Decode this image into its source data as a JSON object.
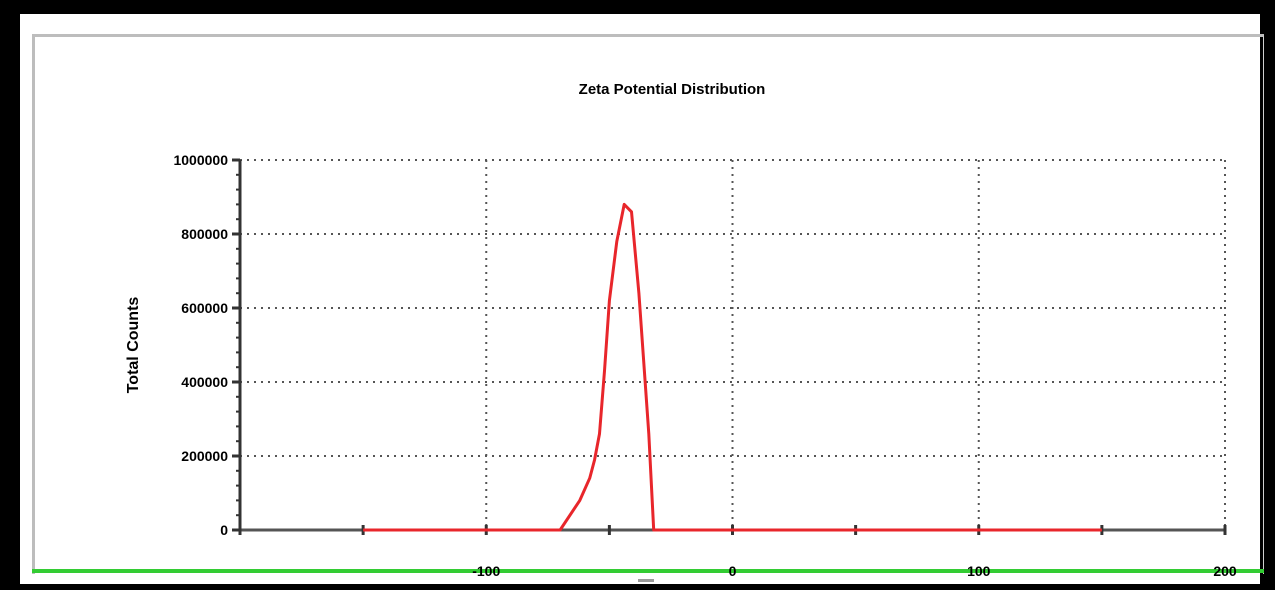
{
  "chart_data": {
    "type": "line",
    "title": "Zeta Potential Distribution",
    "xlabel": "",
    "ylabel": "Total Counts",
    "xlim": [
      -200,
      200
    ],
    "ylim": [
      0,
      1000000
    ],
    "grid": true,
    "x_ticks": [
      -100,
      0,
      100,
      200
    ],
    "x_tick_labels": [
      "-100",
      "0",
      "100",
      "200"
    ],
    "y_ticks": [
      0,
      200000,
      400000,
      600000,
      800000,
      1000000
    ],
    "y_tick_labels": [
      "0",
      "200000",
      "400000",
      "600000",
      "800000",
      "1000000"
    ],
    "series": [
      {
        "color": "#e8262b",
        "x": [
          -150,
          -80,
          -70,
          -62,
          -58,
          -56,
          -54,
          -52,
          -50,
          -47,
          -44,
          -41,
          -38,
          -34,
          -32,
          -25,
          150
        ],
        "y": [
          0,
          0,
          0,
          80000,
          140000,
          190000,
          260000,
          430000,
          620000,
          780000,
          880000,
          860000,
          640000,
          260000,
          0,
          0,
          0
        ]
      }
    ]
  }
}
